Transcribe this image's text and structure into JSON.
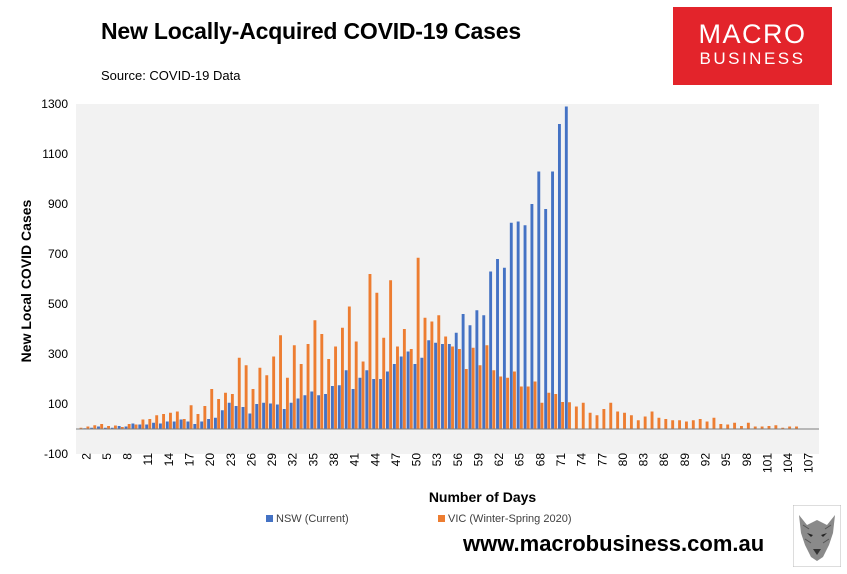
{
  "header": {
    "title": "New Locally-Acquired COVID-19 Cases",
    "source": "Source: COVID-19 Data"
  },
  "logo": {
    "line1": "MACRO",
    "line2": "BUSINESS",
    "color": "#e3242b"
  },
  "footer": {
    "url": "www.macrobusiness.com.au"
  },
  "colors": {
    "nsw": "#4472c4",
    "vic": "#ed7d31",
    "plot_bg": "#f2f2f2"
  },
  "chart_data": {
    "type": "bar",
    "title": "New Locally-Acquired COVID-19 Cases",
    "xlabel": "Number of Days",
    "ylabel": "New Local COVID Cases",
    "ylim": [
      -100,
      1300
    ],
    "yticks": [
      "-100",
      "100",
      "300",
      "500",
      "700",
      "900",
      "1100",
      "1300"
    ],
    "x_start": 1,
    "x_end": 108,
    "xtick_labels": [
      "2",
      "5",
      "8",
      "11",
      "14",
      "17",
      "20",
      "23",
      "26",
      "29",
      "32",
      "35",
      "38",
      "41",
      "44",
      "47",
      "50",
      "53",
      "56",
      "59",
      "62",
      "65",
      "68",
      "71",
      "74",
      "77",
      "80",
      "83",
      "86",
      "89",
      "92",
      "95",
      "98",
      "101",
      "104",
      "107"
    ],
    "legend_position": "bottom",
    "series": [
      {
        "name": "NSW (Current)",
        "color": "#4472c4",
        "start_day": 1,
        "values": [
          0,
          3,
          5,
          10,
          5,
          5,
          12,
          10,
          22,
          18,
          18,
          25,
          22,
          30,
          30,
          38,
          30,
          20,
          30,
          40,
          45,
          75,
          105,
          92,
          88,
          62,
          100,
          105,
          102,
          98,
          80,
          105,
          122,
          135,
          150,
          135,
          140,
          172,
          175,
          235,
          160,
          205,
          235,
          200,
          200,
          230,
          260,
          290,
          310,
          260,
          285,
          355,
          345,
          340,
          340,
          385,
          460,
          415,
          475,
          455,
          630,
          680,
          645,
          825,
          830,
          815,
          900,
          1030,
          880,
          1030,
          1220,
          1290
        ]
      },
      {
        "name": "VIC (Winter-Spring 2020)",
        "color": "#ed7d31",
        "start_day": 1,
        "values": [
          5,
          10,
          15,
          20,
          12,
          14,
          8,
          20,
          18,
          38,
          40,
          55,
          60,
          65,
          70,
          40,
          95,
          60,
          92,
          160,
          120,
          145,
          140,
          285,
          255,
          160,
          245,
          215,
          290,
          375,
          205,
          335,
          260,
          340,
          435,
          380,
          280,
          330,
          405,
          490,
          350,
          270,
          620,
          545,
          365,
          595,
          330,
          400,
          320,
          685,
          445,
          430,
          455,
          370,
          330,
          320,
          240,
          325,
          255,
          335,
          235,
          210,
          205,
          230,
          170,
          170,
          190,
          105,
          145,
          140,
          108,
          107,
          90,
          105,
          65,
          55,
          80,
          105,
          70,
          65,
          55,
          35,
          50,
          70,
          45,
          40,
          35,
          35,
          30,
          35,
          40,
          30,
          45,
          20,
          18,
          25,
          12,
          25,
          10,
          10,
          12,
          15,
          5,
          10,
          10
        ]
      }
    ]
  }
}
